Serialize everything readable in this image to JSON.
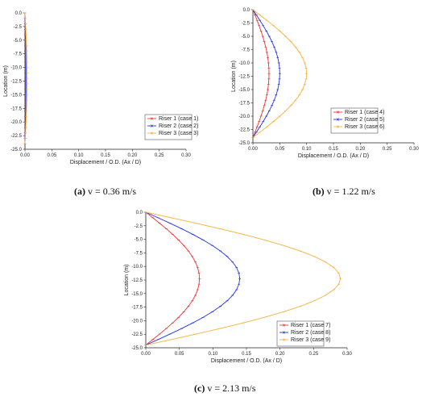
{
  "captions": [
    {
      "tag": "(a)",
      "text": "v = 0.36 m/s"
    },
    {
      "tag": "(b)",
      "text": "v = 1.22 m/s"
    },
    {
      "tag": "(c)",
      "text": "v = 2.13 m/s"
    }
  ],
  "colors": {
    "riser1": "#ee3333",
    "riser2": "#2233ee",
    "riser3": "#f5b23a"
  },
  "chart_data": [
    {
      "type": "line",
      "xlabel": "Displacement / O.D. (Ax / D)",
      "ylabel": "Location (m)",
      "xlim": [
        0,
        0.3
      ],
      "ylim": [
        -25,
        0
      ],
      "xticks": [
        "0.00",
        "0.05",
        "0.10",
        "0.15",
        "0.20",
        "0.25",
        "0.30"
      ],
      "yticks": [
        "0.0",
        "-2.5",
        "-5.0",
        "-7.5",
        "-10.0",
        "-12.5",
        "-15.0",
        "-17.5",
        "-20.0",
        "-22.5",
        "-25.0"
      ],
      "legend_position": "lower-right",
      "profile_depth": [
        0,
        -24
      ],
      "series": [
        {
          "name": "Riser 1 (case 1)",
          "peak_displacement": 0.001
        },
        {
          "name": "Riser 2 (case 2)",
          "peak_displacement": 0.002
        },
        {
          "name": "Riser 3 (case 3)",
          "peak_displacement": 0.004
        }
      ]
    },
    {
      "type": "line",
      "xlabel": "Displacement / O.D. (Ax / D)",
      "ylabel": "Location (m)",
      "xlim": [
        0,
        0.3
      ],
      "ylim": [
        -25,
        0
      ],
      "xticks": [
        "0.00",
        "0.05",
        "0.10",
        "0.15",
        "0.20",
        "0.25",
        "0.30"
      ],
      "yticks": [
        "0.0",
        "-2.5",
        "-5.0",
        "-7.5",
        "-10.0",
        "-12.5",
        "-15.0",
        "-17.5",
        "-20.0",
        "-22.5",
        "-25.0"
      ],
      "legend_position": "lower-right",
      "profile_depth": [
        0,
        -24
      ],
      "series": [
        {
          "name": "Riser 1 (case 4)",
          "peak_displacement": 0.03
        },
        {
          "name": "Riser 2 (case 5)",
          "peak_displacement": 0.05
        },
        {
          "name": "Riser 3 (case 6)",
          "peak_displacement": 0.1
        }
      ]
    },
    {
      "type": "line",
      "xlabel": "Displacement / O.D. (Ax / D)",
      "ylabel": "Location (m)",
      "xlim": [
        0,
        0.3
      ],
      "ylim": [
        -25,
        0
      ],
      "xticks": [
        "0.00",
        "0.05",
        "0.10",
        "0.15",
        "0.20",
        "0.25",
        "0.30"
      ],
      "yticks": [
        "0.0",
        "-2.5",
        "-5.0",
        "-7.5",
        "-10.0",
        "-12.5",
        "-15.0",
        "-17.5",
        "-20.0",
        "-22.5",
        "-25.0"
      ],
      "legend_position": "lower-right",
      "profile_depth": [
        0,
        -24.5
      ],
      "series": [
        {
          "name": "Riser 1 (case 7)",
          "peak_displacement": 0.08
        },
        {
          "name": "Riser 2 (case 8)",
          "peak_displacement": 0.14
        },
        {
          "name": "Riser 3 (case 9)",
          "peak_displacement": 0.29
        }
      ]
    }
  ]
}
